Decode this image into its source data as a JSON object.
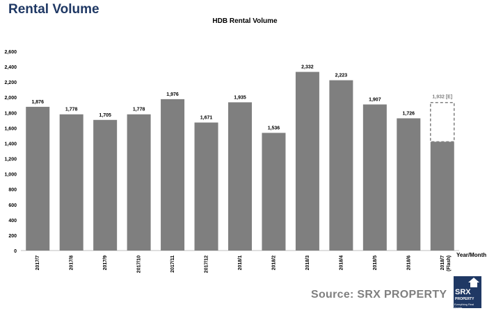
{
  "header": {
    "title": "Rental Volume"
  },
  "chart_data": {
    "type": "bar",
    "title": "HDB Rental Volume",
    "xlabel": "Year/Month",
    "ylabel": "",
    "ylim": [
      0,
      2600
    ],
    "y_ticks": [
      0,
      200,
      400,
      600,
      800,
      1000,
      1200,
      1400,
      1600,
      1800,
      2000,
      2200,
      2400,
      2600
    ],
    "y_tick_labels": [
      "0",
      "200",
      "400",
      "600",
      "800",
      "1,000",
      "1,200",
      "1,400",
      "1,600",
      "1,800",
      "2,000",
      "2,200",
      "2,400",
      "2,600"
    ],
    "grid": false,
    "categories": [
      "2017/7",
      "2017/8",
      "2017/9",
      "2017/10",
      "2017/11",
      "2017/12",
      "2018/1",
      "2018/2",
      "2018/3",
      "2018/4",
      "2018/5",
      "2018/6",
      "2018/7"
    ],
    "category_sublabels": [
      "",
      "",
      "",
      "",
      "",
      "",
      "",
      "",
      "",
      "",
      "",
      "",
      "(Flash)"
    ],
    "values": [
      1876,
      1778,
      1705,
      1778,
      1976,
      1671,
      1935,
      1536,
      2332,
      2223,
      1907,
      1726,
      1932
    ],
    "value_labels": [
      "1,876",
      "1,778",
      "1,705",
      "1,778",
      "1,976",
      "1,671",
      "1,935",
      "1,536",
      "2,332",
      "2,223",
      "1,907",
      "1,726",
      "1,932 [E]"
    ],
    "flash_actual_value": 1420,
    "bar_color": "#7f7f7f",
    "estimate_border_color": "#7f7f7f"
  },
  "footer": {
    "source": "Source:  SRX PROPERTY",
    "logo_name": "SRX",
    "logo_sub": "PROPERTY",
    "logo_tagline": "Everything Real Estate",
    "logo_color": "#1f3864"
  }
}
